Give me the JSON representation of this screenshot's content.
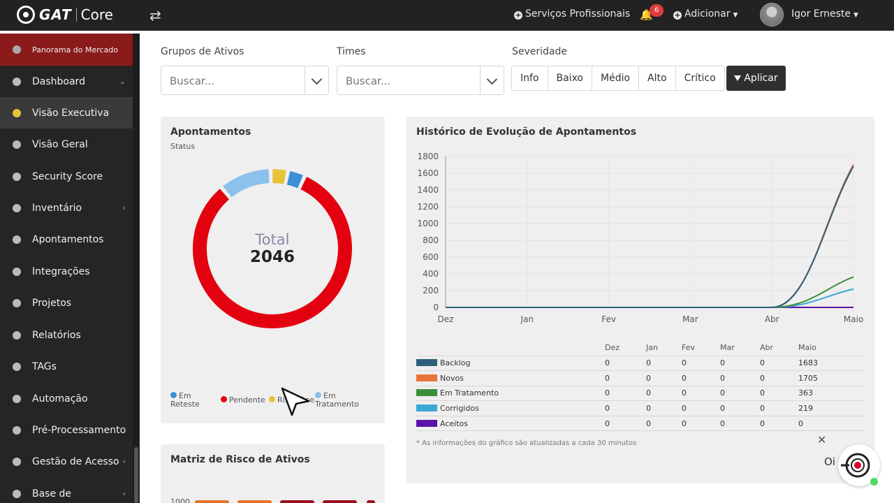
{
  "topbar": {
    "logo_text": "GAT",
    "logo_product": "Core",
    "services_label": "Serviços Profissionais",
    "notifications_count": "6",
    "add_label": "Adicionar",
    "user_name": "Igor Erneste"
  },
  "sidebar": {
    "items": [
      {
        "label": "Panorama do Mercado"
      },
      {
        "label": "Dashboard"
      },
      {
        "label": "Visão Executiva"
      },
      {
        "label": "Visão Geral"
      },
      {
        "label": "Security Score"
      },
      {
        "label": "Inventário"
      },
      {
        "label": "Apontamentos"
      },
      {
        "label": "Integrações"
      },
      {
        "label": "Projetos"
      },
      {
        "label": "Relatórios"
      },
      {
        "label": "TAGs"
      },
      {
        "label": "Automação"
      },
      {
        "label": "Pré-Processamento"
      },
      {
        "label": "Gestão de Acesso"
      },
      {
        "label": "Base de"
      }
    ]
  },
  "filters": {
    "asset_groups_label": "Grupos de Ativos",
    "asset_groups_placeholder": "Buscar...",
    "teams_label": "Times",
    "teams_placeholder": "Buscar...",
    "severity_label": "Severidade",
    "severity_options": [
      "Info",
      "Baixo",
      "Médio",
      "Alto",
      "Crítico"
    ],
    "apply_label": "Aplicar"
  },
  "findings_card": {
    "title": "Apontamentos",
    "subtitle": "Status",
    "total_label": "Total",
    "total_value": "2046",
    "legend": [
      {
        "name": "Em Reteste",
        "color": "#3b8fd6"
      },
      {
        "name": "Pendente",
        "color": "#e3000f"
      },
      {
        "name": "Risco Aceito",
        "color": "#e8c33a"
      },
      {
        "name": "Em Tratamento",
        "color": "#8cc1ec"
      }
    ]
  },
  "chart_data": [
    {
      "type": "pie",
      "title": "Apontamentos",
      "subtitle": "Status",
      "categories": [
        "Pendente",
        "Em Tratamento",
        "Risco Aceito",
        "Em Reteste"
      ],
      "values": [
        1683,
        219,
        72,
        72
      ],
      "colors": [
        "#e3000f",
        "#8cc1ec",
        "#e8c33a",
        "#3b8fd6"
      ],
      "center_label": "Total 2046"
    },
    {
      "type": "line",
      "title": "Histórico de Evolução de Apontamentos",
      "categories": [
        "Dez",
        "Jan",
        "Fev",
        "Mar",
        "Abr",
        "Maio"
      ],
      "ylim": [
        0,
        1800
      ],
      "yticks": [
        0,
        200,
        400,
        600,
        800,
        1000,
        1200,
        1400,
        1600,
        1800
      ],
      "grid": true,
      "series": [
        {
          "name": "Backlog",
          "color": "#2f5f7a",
          "values": [
            0,
            0,
            0,
            0,
            0,
            1683
          ]
        },
        {
          "name": "Novos",
          "color": "#e8743b",
          "values": [
            0,
            0,
            0,
            0,
            0,
            1705
          ]
        },
        {
          "name": "Em Tratamento",
          "color": "#3b8f3b",
          "values": [
            0,
            0,
            0,
            0,
            0,
            363
          ]
        },
        {
          "name": "Corrigidos",
          "color": "#3aa8d6",
          "values": [
            0,
            0,
            0,
            0,
            0,
            219
          ]
        },
        {
          "name": "Aceitos",
          "color": "#5a12a8",
          "values": [
            0,
            0,
            0,
            0,
            0,
            0
          ]
        }
      ]
    }
  ],
  "history_card": {
    "title": "Histórico de Evolução de Apontamentos",
    "footnote": "* As informações do gráfico são atualizadas a cada 30 minutos"
  },
  "matrix_card": {
    "title": "Matriz de Risco de Ativos",
    "first_tick": "1000"
  },
  "chat": {
    "greeting": "Oi"
  }
}
